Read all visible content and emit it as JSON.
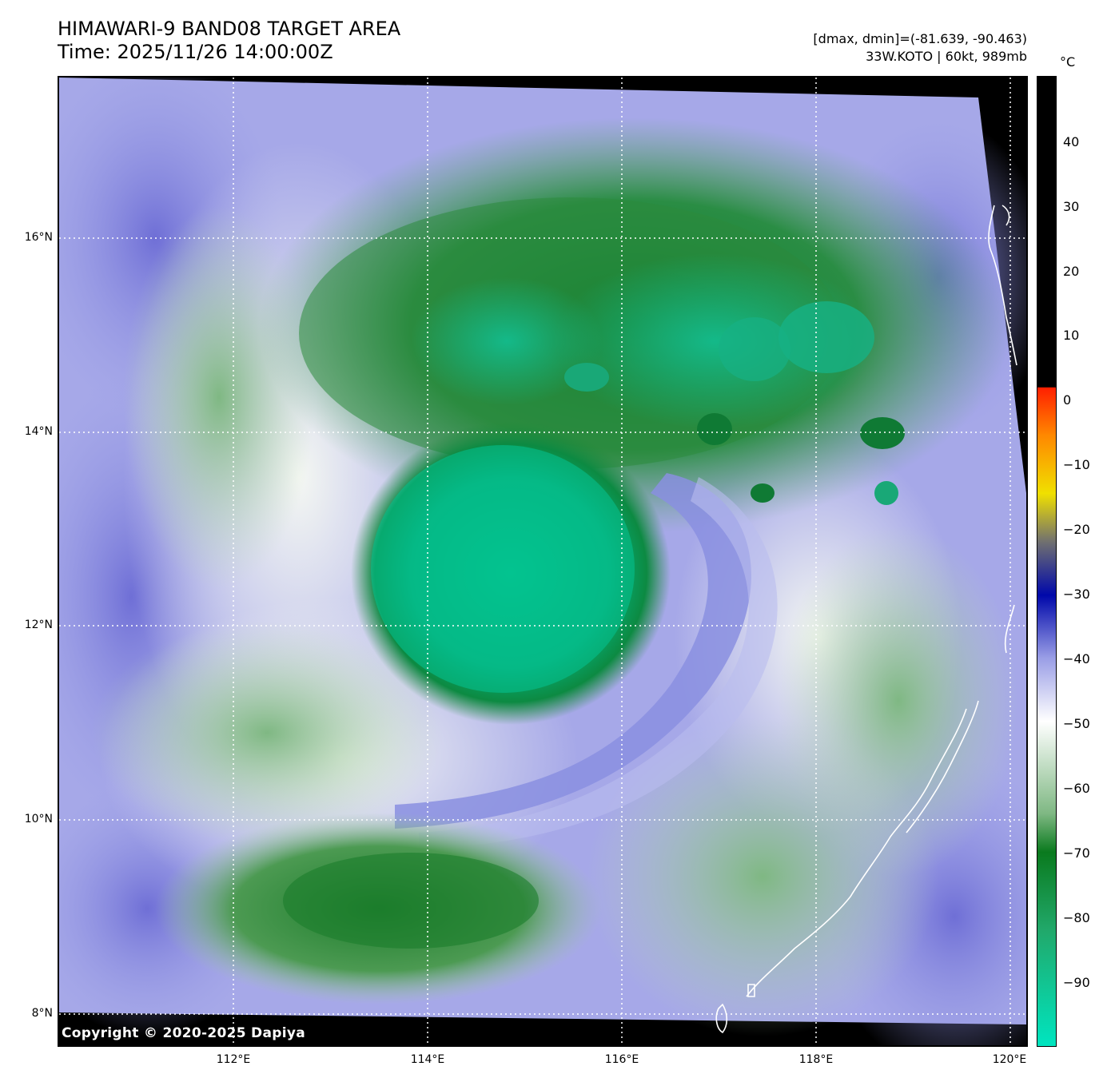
{
  "header": {
    "title_line1": "HIMAWARI-9 BAND08 TARGET AREA",
    "title_line2": "Time: 2025/11/26 14:00:00Z",
    "dmax_dmin": "[dmax, dmin]=(-81.639, -90.463)",
    "storm": "33W.KOTO | 60kt, 989mb"
  },
  "map": {
    "copyright": "Copyright © 2020-2025 Dapiya",
    "lat_labels": [
      "16°N",
      "14°N",
      "12°N",
      "10°N",
      "8°N"
    ],
    "lon_labels": [
      "112°E",
      "114°E",
      "116°E",
      "118°E",
      "120°E"
    ]
  },
  "colorbar": {
    "unit": "°C",
    "tick_labels": [
      "40",
      "30",
      "20",
      "10",
      "0",
      "−10",
      "−20",
      "−30",
      "−40",
      "−50",
      "−60",
      "−70",
      "−80",
      "−90"
    ],
    "colors": {
      "teal": "#00e5c0",
      "green": "#0a7a1e",
      "white": "#ffffff",
      "lavender": "#9a9ee6",
      "blue": "#0008aa",
      "gray": "#707070",
      "yellow": "#f0e000",
      "orange": "#ff8800",
      "red": "#ff2000",
      "black": "#000000"
    }
  }
}
